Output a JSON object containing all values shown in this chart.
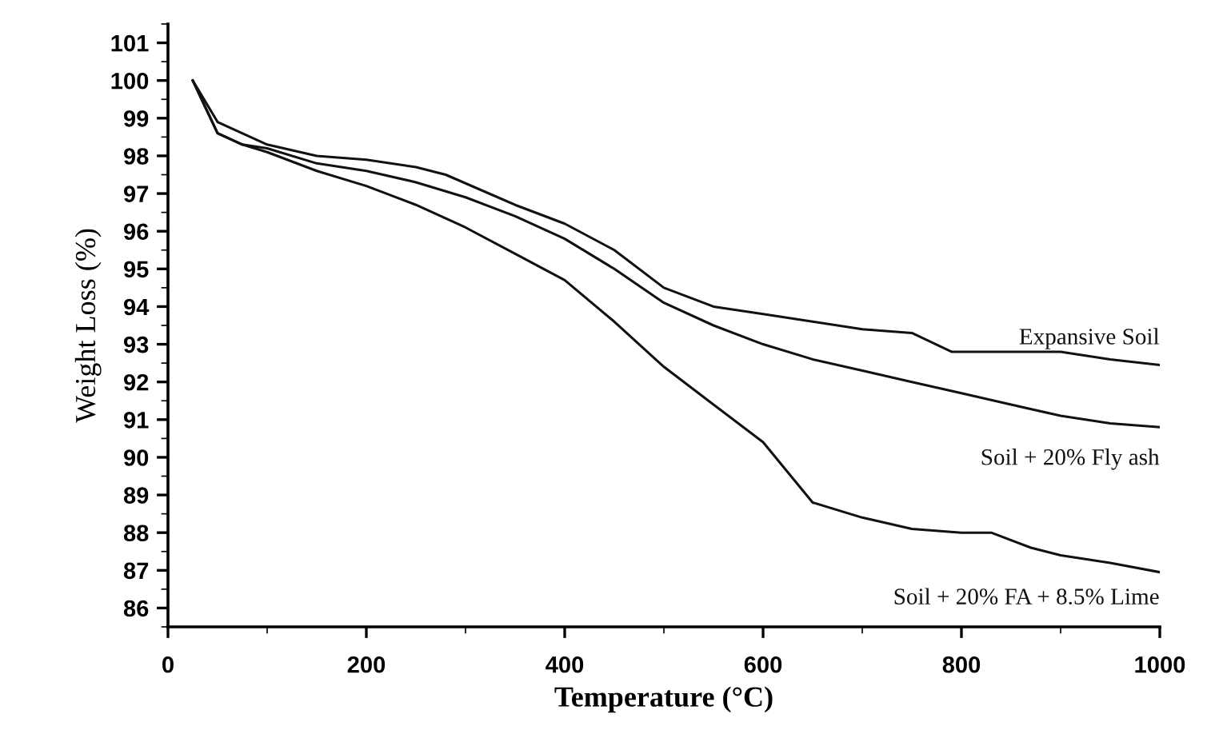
{
  "chart_data": {
    "type": "line",
    "xlabel": "Temperature (°C)",
    "ylabel": "Weight Loss (%)",
    "xlim": [
      0,
      1000
    ],
    "xticks": [
      0,
      200,
      400,
      600,
      800,
      1000
    ],
    "ylim": [
      85.5,
      101.5
    ],
    "yticks": [
      86,
      87,
      88,
      89,
      90,
      91,
      92,
      93,
      94,
      95,
      96,
      97,
      98,
      99,
      100,
      101
    ],
    "grid": false,
    "legend": false,
    "marker": "none",
    "line_style": "solid",
    "series": [
      {
        "name": "Expansive Soil",
        "color": "#111111",
        "x": [
          25,
          50,
          100,
          150,
          200,
          250,
          280,
          350,
          400,
          450,
          500,
          550,
          600,
          650,
          700,
          750,
          790,
          850,
          900,
          950,
          1000
        ],
        "values": [
          100,
          98.9,
          98.3,
          98.0,
          97.9,
          97.7,
          97.5,
          96.7,
          96.2,
          95.5,
          94.5,
          94.0,
          93.8,
          93.6,
          93.4,
          93.3,
          92.8,
          92.8,
          92.8,
          92.6,
          92.45
        ]
      },
      {
        "name": "Soil + 20% Fly ash",
        "color": "#111111",
        "x": [
          25,
          50,
          75,
          100,
          150,
          200,
          250,
          300,
          350,
          400,
          450,
          500,
          550,
          600,
          650,
          700,
          750,
          800,
          850,
          900,
          950,
          1000
        ],
        "values": [
          100,
          98.6,
          98.3,
          98.2,
          97.8,
          97.6,
          97.3,
          96.9,
          96.4,
          95.8,
          95.0,
          94.1,
          93.5,
          93.0,
          92.6,
          92.3,
          92.0,
          91.7,
          91.4,
          91.1,
          90.9,
          90.8
        ]
      },
      {
        "name": "Soil + 20% FA + 8.5% Lime",
        "color": "#111111",
        "x": [
          25,
          50,
          75,
          100,
          150,
          200,
          250,
          300,
          350,
          400,
          450,
          500,
          550,
          600,
          625,
          650,
          700,
          750,
          800,
          830,
          870,
          900,
          950,
          1000
        ],
        "values": [
          100,
          98.6,
          98.3,
          98.1,
          97.6,
          97.2,
          96.7,
          96.1,
          95.4,
          94.7,
          93.6,
          92.4,
          91.4,
          90.4,
          89.6,
          88.8,
          88.4,
          88.1,
          88.0,
          88.0,
          87.6,
          87.4,
          87.2,
          86.95
        ]
      }
    ]
  }
}
